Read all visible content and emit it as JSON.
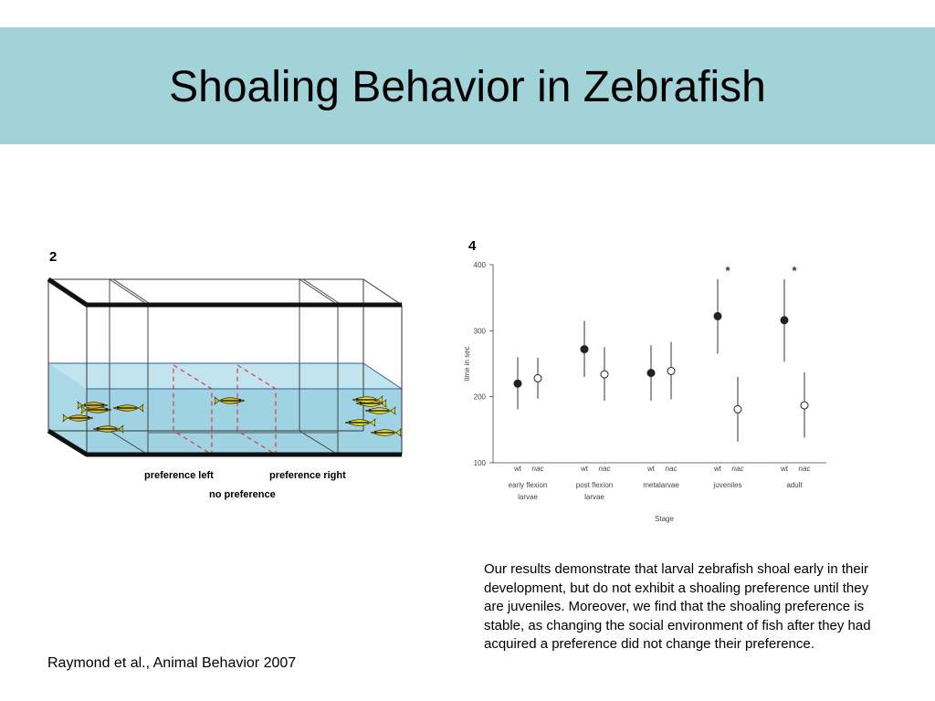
{
  "title": "Shoaling Behavior in Zebrafish",
  "figure_left": {
    "panel_number": "2",
    "labels": {
      "preference_left": "preference left",
      "preference_right": "preference right",
      "no_preference": "no preference"
    },
    "fish_colors": {
      "wildtype": "#d9c21e",
      "nacre": "#f4e51a"
    }
  },
  "figure_right": {
    "panel_number": "4",
    "significance_marker": "*"
  },
  "chart_data": {
    "type": "scatter",
    "title": "",
    "xlabel": "Stage",
    "ylabel": "time in sec",
    "ylim": [
      100,
      400
    ],
    "yticks": [
      100,
      200,
      300,
      400
    ],
    "stages": [
      "early flexion larvae",
      "post flexion larvae",
      "metalarvae",
      "juveniles",
      "adult"
    ],
    "stage_label_lines": [
      [
        "early flexion",
        "larvae"
      ],
      [
        "post flexion",
        "larvae"
      ],
      [
        "metalarvae"
      ],
      [
        "juveniles"
      ],
      [
        "adult"
      ]
    ],
    "genotypes": [
      "wt",
      "nac"
    ],
    "series": [
      {
        "name": "wt",
        "marker": "filled",
        "values": [
          220,
          272,
          236,
          322,
          316
        ],
        "err_low": [
          181,
          230,
          194,
          265,
          253
        ],
        "err_high": [
          260,
          315,
          278,
          378,
          378
        ]
      },
      {
        "name": "nac",
        "marker": "open",
        "values": [
          228,
          234,
          239,
          181,
          187
        ],
        "err_low": [
          197,
          194,
          196,
          132,
          138
        ],
        "err_high": [
          259,
          275,
          283,
          230,
          237
        ]
      }
    ],
    "significant_stages": [
      "juveniles",
      "adult"
    ]
  },
  "citation": "Raymond et al., Animal Behavior 2007",
  "summary": "Our results demonstrate that larval zebrafish shoal early in their development, but do not exhibit a shoaling preference until they are juveniles. Moreover, we find that the shoaling preference is stable, as changing the social environment of fish after they had acquired a preference did not change their preference."
}
